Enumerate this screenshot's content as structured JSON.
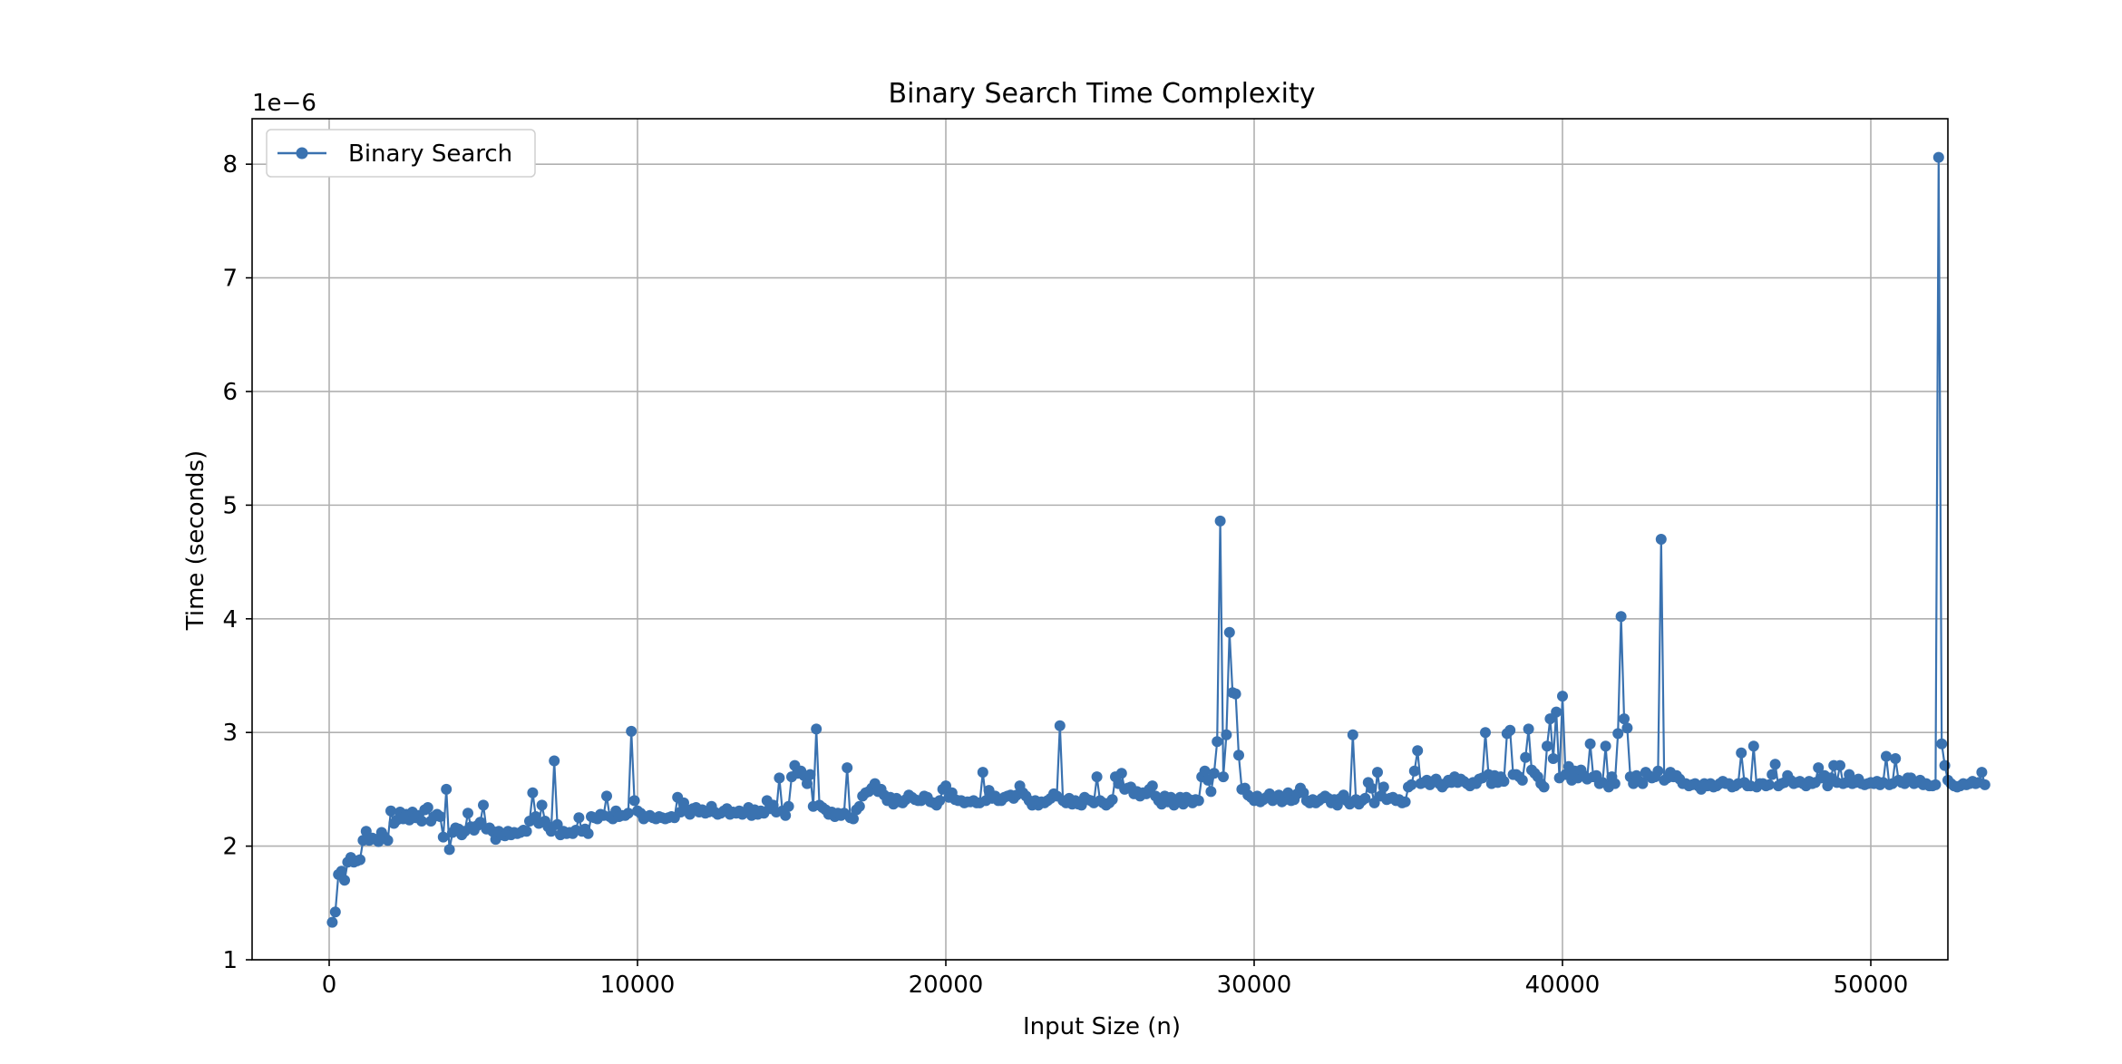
{
  "chart_data": {
    "type": "line",
    "title": "Binary Search Time Complexity",
    "xlabel": "Input Size (n)",
    "ylabel": "Time (seconds)",
    "y_offset_label": "1e−6",
    "xlim": [
      -2500,
      52500
    ],
    "ylim": [
      1.0,
      8.4
    ],
    "x_ticks": [
      0,
      10000,
      20000,
      30000,
      40000,
      50000
    ],
    "x_tick_labels": [
      "0",
      "10000",
      "20000",
      "30000",
      "40000",
      "50000"
    ],
    "y_ticks": [
      1,
      2,
      3,
      4,
      5,
      6,
      7,
      8
    ],
    "y_tick_labels": [
      "1",
      "2",
      "3",
      "4",
      "5",
      "6",
      "7",
      "8"
    ],
    "grid": true,
    "legend": {
      "placement": "top-left",
      "entries": [
        "Binary Search"
      ]
    },
    "colors": {
      "series": "#3a72b0",
      "grid": "#b0b0b0",
      "axes": "#000000"
    },
    "series": [
      {
        "name": "Binary Search",
        "x_start": 100,
        "x_step": 100,
        "values": [
          1.33,
          1.42,
          1.75,
          1.78,
          1.7,
          1.86,
          1.9,
          1.86,
          1.87,
          1.88,
          2.05,
          2.13,
          2.05,
          2.07,
          2.06,
          2.04,
          2.12,
          2.08,
          2.05,
          2.31,
          2.2,
          2.23,
          2.3,
          2.24,
          2.28,
          2.23,
          2.3,
          2.25,
          2.27,
          2.22,
          2.32,
          2.34,
          2.22,
          2.26,
          2.28,
          2.26,
          2.08,
          2.5,
          1.97,
          2.12,
          2.16,
          2.15,
          2.1,
          2.13,
          2.29,
          2.17,
          2.14,
          2.18,
          2.21,
          2.36,
          2.15,
          2.16,
          2.13,
          2.06,
          2.13,
          2.1,
          2.09,
          2.13,
          2.1,
          2.12,
          2.11,
          2.12,
          2.14,
          2.13,
          2.22,
          2.47,
          2.26,
          2.2,
          2.36,
          2.22,
          2.17,
          2.13,
          2.75,
          2.19,
          2.1,
          2.13,
          2.11,
          2.12,
          2.11,
          2.14,
          2.25,
          2.13,
          2.15,
          2.11,
          2.26,
          2.25,
          2.24,
          2.28,
          2.27,
          2.44,
          2.26,
          2.24,
          2.31,
          2.26,
          2.27,
          2.27,
          2.29,
          3.01,
          2.4,
          2.31,
          2.29,
          2.24,
          2.26,
          2.27,
          2.25,
          2.24,
          2.26,
          2.25,
          2.24,
          2.25,
          2.26,
          2.25,
          2.43,
          2.3,
          2.38,
          2.32,
          2.28,
          2.33,
          2.34,
          2.3,
          2.32,
          2.29,
          2.3,
          2.35,
          2.3,
          2.28,
          2.29,
          2.31,
          2.33,
          2.28,
          2.3,
          2.29,
          2.31,
          2.28,
          2.3,
          2.34,
          2.27,
          2.32,
          2.28,
          2.31,
          2.29,
          2.4,
          2.33,
          2.36,
          2.3,
          2.6,
          2.31,
          2.27,
          2.35,
          2.61,
          2.71,
          2.64,
          2.66,
          2.62,
          2.55,
          2.63,
          2.35,
          3.03,
          2.36,
          2.34,
          2.32,
          2.28,
          2.3,
          2.26,
          2.29,
          2.27,
          2.29,
          2.69,
          2.25,
          2.24,
          2.32,
          2.35,
          2.44,
          2.47,
          2.48,
          2.51,
          2.55,
          2.48,
          2.5,
          2.45,
          2.4,
          2.43,
          2.37,
          2.42,
          2.39,
          2.38,
          2.41,
          2.45,
          2.43,
          2.41,
          2.4,
          2.4,
          2.44,
          2.43,
          2.39,
          2.38,
          2.36,
          2.4,
          2.5,
          2.53,
          2.43,
          2.47,
          2.41,
          2.4,
          2.4,
          2.38,
          2.39,
          2.39,
          2.4,
          2.38,
          2.38,
          2.65,
          2.4,
          2.49,
          2.42,
          2.44,
          2.4,
          2.4,
          2.43,
          2.44,
          2.45,
          2.42,
          2.45,
          2.53,
          2.47,
          2.44,
          2.4,
          2.36,
          2.4,
          2.36,
          2.39,
          2.38,
          2.4,
          2.42,
          2.46,
          2.44,
          3.06,
          2.4,
          2.38,
          2.42,
          2.37,
          2.4,
          2.37,
          2.36,
          2.43,
          2.41,
          2.4,
          2.38,
          2.61,
          2.4,
          2.38,
          2.36,
          2.38,
          2.41,
          2.61,
          2.55,
          2.64,
          2.5,
          2.51,
          2.52,
          2.46,
          2.48,
          2.44,
          2.47,
          2.46,
          2.5,
          2.53,
          2.44,
          2.4,
          2.37,
          2.44,
          2.39,
          2.43,
          2.36,
          2.4,
          2.43,
          2.37,
          2.43,
          2.41,
          2.38,
          2.41,
          2.4,
          2.61,
          2.66,
          2.58,
          2.48,
          2.64,
          2.92,
          4.86,
          2.61,
          2.98,
          3.88,
          3.35,
          3.34,
          2.8,
          2.5,
          2.51,
          2.45,
          2.43,
          2.4,
          2.44,
          2.39,
          2.41,
          2.43,
          2.46,
          2.4,
          2.43,
          2.45,
          2.39,
          2.41,
          2.47,
          2.4,
          2.41,
          2.46,
          2.51,
          2.47,
          2.4,
          2.38,
          2.41,
          2.38,
          2.4,
          2.42,
          2.44,
          2.42,
          2.38,
          2.41,
          2.36,
          2.42,
          2.45,
          2.4,
          2.37,
          2.98,
          2.41,
          2.37,
          2.4,
          2.42,
          2.56,
          2.51,
          2.38,
          2.65,
          2.44,
          2.52,
          2.41,
          2.42,
          2.43,
          2.4,
          2.41,
          2.38,
          2.39,
          2.52,
          2.54,
          2.66,
          2.84,
          2.55,
          2.56,
          2.58,
          2.54,
          2.57,
          2.59,
          2.55,
          2.52,
          2.55,
          2.58,
          2.56,
          2.61,
          2.56,
          2.59,
          2.57,
          2.55,
          2.53,
          2.56,
          2.55,
          2.59,
          2.6,
          3.0,
          2.63,
          2.55,
          2.62,
          2.56,
          2.61,
          2.57,
          2.99,
          3.02,
          2.63,
          2.63,
          2.61,
          2.58,
          2.78,
          3.03,
          2.67,
          2.64,
          2.61,
          2.55,
          2.52,
          2.88,
          3.12,
          2.77,
          3.18,
          2.6,
          3.32,
          2.63,
          2.7,
          2.58,
          2.66,
          2.6,
          2.67,
          2.62,
          2.59,
          2.9,
          2.61,
          2.62,
          2.55,
          2.56,
          2.88,
          2.52,
          2.61,
          2.55,
          2.99,
          4.02,
          3.12,
          3.04,
          2.61,
          2.55,
          2.62,
          2.57,
          2.55,
          2.65,
          2.62,
          2.6,
          2.61,
          2.66,
          4.7,
          2.58,
          2.6,
          2.65,
          2.61,
          2.62,
          2.59,
          2.55,
          2.55,
          2.53,
          2.54,
          2.55,
          2.53,
          2.5,
          2.55,
          2.53,
          2.55,
          2.52,
          2.53,
          2.55,
          2.57,
          2.55,
          2.55,
          2.52,
          2.53,
          2.55,
          2.82,
          2.56,
          2.53,
          2.53,
          2.88,
          2.52,
          2.55,
          2.55,
          2.53,
          2.54,
          2.63,
          2.72,
          2.53,
          2.55,
          2.56,
          2.62,
          2.58,
          2.55,
          2.56,
          2.57,
          2.55,
          2.53,
          2.57,
          2.55,
          2.56,
          2.69,
          2.6,
          2.62,
          2.53,
          2.6,
          2.71,
          2.56,
          2.71,
          2.55,
          2.56,
          2.63,
          2.55,
          2.56,
          2.59,
          2.55,
          2.54,
          2.55,
          2.56,
          2.55,
          2.57,
          2.54,
          2.56,
          2.79,
          2.54,
          2.55,
          2.77,
          2.58,
          2.56,
          2.55,
          2.6,
          2.6,
          2.55,
          2.56,
          2.58,
          2.54,
          2.55,
          2.53,
          2.53,
          2.54,
          8.06,
          2.9,
          2.71,
          2.58,
          2.55,
          2.53,
          2.52,
          2.53,
          2.55,
          2.54,
          2.55,
          2.57,
          2.55,
          2.56,
          2.65,
          2.54
        ]
      }
    ]
  }
}
